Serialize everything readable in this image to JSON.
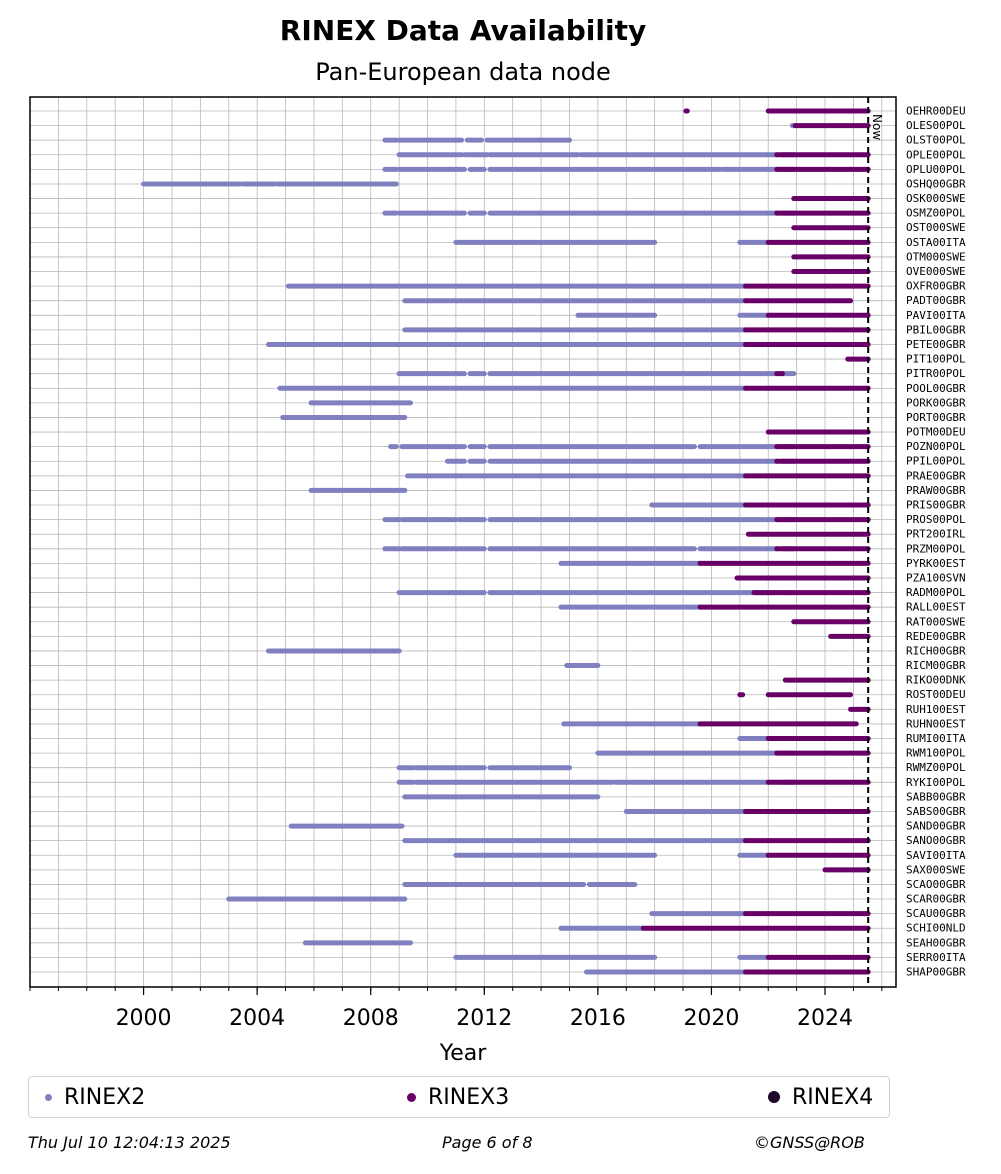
{
  "chart_data": {
    "type": "timeline",
    "title": "RINEX Data Availability",
    "subtitle": "Pan-European data node",
    "xlabel": "Year",
    "xlim": [
      1996.0,
      2026.5
    ],
    "xticks": [
      2000,
      2004,
      2008,
      2012,
      2016,
      2020,
      2024
    ],
    "now": 2025.52,
    "now_label": "Now",
    "colors": {
      "RINEX2": "#8080c0",
      "RINEX3": "#680068",
      "RINEX4": "#20082a"
    },
    "legend": [
      {
        "name": "RINEX2",
        "color": "#8080c0"
      },
      {
        "name": "RINEX3",
        "color": "#680068"
      },
      {
        "name": "RINEX4",
        "color": "#20082a"
      }
    ],
    "stations": [
      {
        "name": "OEHR00DEU",
        "r2": [],
        "r3": [
          [
            2019.1,
            2019.15
          ],
          [
            2022.0,
            2025.52
          ]
        ]
      },
      {
        "name": "OLES00POL",
        "r2": [
          [
            2022.85,
            2022.95
          ]
        ],
        "r3": [
          [
            2022.95,
            2025.52
          ]
        ]
      },
      {
        "name": "OLST00POL",
        "r2": [
          [
            2008.5,
            2008.9
          ],
          [
            2009.0,
            2011.2
          ],
          [
            2011.4,
            2011.9
          ],
          [
            2012.1,
            2015.0
          ]
        ],
        "r3": []
      },
      {
        "name": "OPLE00POL",
        "r2": [
          [
            2009.0,
            2011.2
          ],
          [
            2011.3,
            2012.1
          ],
          [
            2012.2,
            2015.3
          ],
          [
            2015.4,
            2022.3
          ],
          [
            2022.5,
            2022.9
          ]
        ],
        "r3": [
          [
            2022.3,
            2025.52
          ]
        ]
      },
      {
        "name": "OPLU00POL",
        "r2": [
          [
            2008.5,
            2008.9
          ],
          [
            2009.0,
            2011.3
          ],
          [
            2011.5,
            2012.0
          ],
          [
            2012.2,
            2020.3
          ],
          [
            2020.4,
            2022.3
          ],
          [
            2022.4,
            2022.9
          ]
        ],
        "r3": [
          [
            2022.3,
            2025.52
          ]
        ]
      },
      {
        "name": "OSHQ00GBR",
        "r2": [
          [
            2000.0,
            2003.4
          ],
          [
            2003.5,
            2004.6
          ],
          [
            2004.7,
            2008.9
          ]
        ],
        "r3": []
      },
      {
        "name": "OSK000SWE",
        "r2": [],
        "r3": [
          [
            2022.9,
            2025.52
          ]
        ]
      },
      {
        "name": "OSMZ00POL",
        "r2": [
          [
            2008.5,
            2008.9
          ],
          [
            2009.0,
            2011.3
          ],
          [
            2011.5,
            2012.0
          ],
          [
            2012.2,
            2022.3
          ],
          [
            2022.5,
            2022.9
          ]
        ],
        "r3": [
          [
            2022.3,
            2025.52
          ]
        ]
      },
      {
        "name": "OST000SWE",
        "r2": [],
        "r3": [
          [
            2022.9,
            2025.52
          ]
        ]
      },
      {
        "name": "OSTA00ITA",
        "r2": [
          [
            2011.0,
            2018.0
          ],
          [
            2021.0,
            2022.0
          ]
        ],
        "r3": [
          [
            2022.0,
            2025.52
          ]
        ]
      },
      {
        "name": "OTM000SWE",
        "r2": [],
        "r3": [
          [
            2022.9,
            2025.52
          ]
        ]
      },
      {
        "name": "OVE000SWE",
        "r2": [],
        "r3": [
          [
            2022.9,
            2025.52
          ]
        ]
      },
      {
        "name": "OXFR00GBR",
        "r2": [
          [
            2005.1,
            2021.2
          ]
        ],
        "r3": [
          [
            2021.2,
            2025.52
          ]
        ]
      },
      {
        "name": "PADT00GBR",
        "r2": [
          [
            2009.2,
            2021.2
          ]
        ],
        "r3": [
          [
            2021.2,
            2024.9
          ]
        ]
      },
      {
        "name": "PAVI00ITA",
        "r2": [
          [
            2015.3,
            2018.0
          ],
          [
            2021.0,
            2022.0
          ]
        ],
        "r3": [
          [
            2022.0,
            2025.52
          ]
        ]
      },
      {
        "name": "PBIL00GBR",
        "r2": [
          [
            2009.2,
            2021.2
          ]
        ],
        "r3": [
          [
            2021.2,
            2025.52
          ]
        ]
      },
      {
        "name": "PETE00GBR",
        "r2": [
          [
            2004.4,
            2021.2
          ]
        ],
        "r3": [
          [
            2021.2,
            2025.52
          ]
        ]
      },
      {
        "name": "PIT100POL",
        "r2": [],
        "r3": [
          [
            2024.8,
            2025.52
          ]
        ]
      },
      {
        "name": "PITR00POL",
        "r2": [
          [
            2009.0,
            2011.3
          ],
          [
            2011.5,
            2012.0
          ],
          [
            2012.2,
            2022.3
          ],
          [
            2022.5,
            2022.9
          ]
        ],
        "r3": [
          [
            2022.3,
            2022.5
          ]
        ]
      },
      {
        "name": "POOL00GBR",
        "r2": [
          [
            2004.8,
            2021.2
          ]
        ],
        "r3": [
          [
            2021.2,
            2025.52
          ]
        ]
      },
      {
        "name": "PORK00GBR",
        "r2": [
          [
            2005.9,
            2009.4
          ]
        ],
        "r3": []
      },
      {
        "name": "PORT00GBR",
        "r2": [
          [
            2004.9,
            2009.2
          ]
        ],
        "r3": []
      },
      {
        "name": "POTM00DEU",
        "r2": [],
        "r3": [
          [
            2022.0,
            2025.52
          ]
        ]
      },
      {
        "name": "POZN00POL",
        "r2": [
          [
            2008.7,
            2008.9
          ],
          [
            2009.1,
            2011.3
          ],
          [
            2011.5,
            2012.0
          ],
          [
            2012.2,
            2019.4
          ],
          [
            2019.6,
            2022.3
          ],
          [
            2022.5,
            2022.9
          ]
        ],
        "r3": [
          [
            2022.3,
            2025.52
          ]
        ]
      },
      {
        "name": "PPIL00POL",
        "r2": [
          [
            2010.7,
            2011.3
          ],
          [
            2011.5,
            2012.0
          ],
          [
            2012.2,
            2022.3
          ],
          [
            2022.5,
            2022.9
          ]
        ],
        "r3": [
          [
            2022.3,
            2025.52
          ]
        ]
      },
      {
        "name": "PRAE00GBR",
        "r2": [
          [
            2009.3,
            2021.2
          ]
        ],
        "r3": [
          [
            2021.2,
            2025.52
          ]
        ]
      },
      {
        "name": "PRAW00GBR",
        "r2": [
          [
            2005.9,
            2009.2
          ]
        ],
        "r3": []
      },
      {
        "name": "PRIS00GBR",
        "r2": [
          [
            2017.9,
            2021.2
          ]
        ],
        "r3": [
          [
            2021.2,
            2025.52
          ]
        ]
      },
      {
        "name": "PROS00POL",
        "r2": [
          [
            2008.5,
            2009.0
          ],
          [
            2009.1,
            2011.0
          ],
          [
            2011.1,
            2012.0
          ],
          [
            2012.2,
            2022.3
          ],
          [
            2022.5,
            2022.9
          ]
        ],
        "r3": [
          [
            2022.3,
            2025.52
          ]
        ]
      },
      {
        "name": "PRT200IRL",
        "r2": [],
        "r3": [
          [
            2021.3,
            2025.52
          ]
        ]
      },
      {
        "name": "PRZM00POL",
        "r2": [
          [
            2008.5,
            2009.0
          ],
          [
            2009.1,
            2012.0
          ],
          [
            2012.2,
            2019.4
          ],
          [
            2019.6,
            2022.3
          ],
          [
            2022.5,
            2022.9
          ]
        ],
        "r3": [
          [
            2022.3,
            2025.52
          ]
        ]
      },
      {
        "name": "PYRK00EST",
        "r2": [
          [
            2014.7,
            2019.6
          ]
        ],
        "r3": [
          [
            2019.6,
            2025.52
          ]
        ]
      },
      {
        "name": "PZA100SVN",
        "r2": [],
        "r3": [
          [
            2020.9,
            2025.52
          ]
        ]
      },
      {
        "name": "RADM00POL",
        "r2": [
          [
            2009.0,
            2012.0
          ],
          [
            2012.2,
            2021.5
          ],
          [
            2021.6,
            2022.3
          ],
          [
            2022.5,
            2022.9
          ]
        ],
        "r3": [
          [
            2021.5,
            2025.52
          ]
        ]
      },
      {
        "name": "RALL00EST",
        "r2": [
          [
            2014.7,
            2019.6
          ]
        ],
        "r3": [
          [
            2019.6,
            2025.52
          ]
        ]
      },
      {
        "name": "RAT000SWE",
        "r2": [],
        "r3": [
          [
            2022.9,
            2025.52
          ]
        ]
      },
      {
        "name": "REDE00GBR",
        "r2": [],
        "r3": [
          [
            2024.2,
            2025.52
          ]
        ]
      },
      {
        "name": "RICH00GBR",
        "r2": [
          [
            2004.4,
            2009.0
          ]
        ],
        "r3": []
      },
      {
        "name": "RICM00GBR",
        "r2": [
          [
            2014.9,
            2016.0
          ]
        ],
        "r3": []
      },
      {
        "name": "RIKO00DNK",
        "r2": [],
        "r3": [
          [
            2022.6,
            2025.52
          ]
        ]
      },
      {
        "name": "ROST00DEU",
        "r2": [],
        "r3": [
          [
            2021.0,
            2021.1
          ],
          [
            2022.0,
            2024.9
          ]
        ]
      },
      {
        "name": "RUH100EST",
        "r2": [],
        "r3": [
          [
            2024.9,
            2025.52
          ]
        ]
      },
      {
        "name": "RUHN00EST",
        "r2": [
          [
            2014.8,
            2019.6
          ]
        ],
        "r3": [
          [
            2019.6,
            2025.1
          ]
        ]
      },
      {
        "name": "RUMI00ITA",
        "r2": [
          [
            2021.0,
            2022.0
          ]
        ],
        "r3": [
          [
            2022.0,
            2025.52
          ]
        ]
      },
      {
        "name": "RWM100POL",
        "r2": [
          [
            2016.0,
            2022.3
          ],
          [
            2022.5,
            2022.9
          ]
        ],
        "r3": [
          [
            2022.3,
            2025.52
          ]
        ]
      },
      {
        "name": "RWMZ00POL",
        "r2": [
          [
            2009.0,
            2009.5
          ],
          [
            2009.6,
            2012.0
          ],
          [
            2012.2,
            2015.0
          ]
        ],
        "r3": []
      },
      {
        "name": "RYKI00POL",
        "r2": [
          [
            2009.0,
            2009.5
          ],
          [
            2009.6,
            2016.5
          ],
          [
            2016.6,
            2022.0
          ],
          [
            2022.5,
            2022.9
          ]
        ],
        "r3": [
          [
            2022.0,
            2025.52
          ]
        ]
      },
      {
        "name": "SABB00GBR",
        "r2": [
          [
            2009.2,
            2016.0
          ]
        ],
        "r3": []
      },
      {
        "name": "SABS00GBR",
        "r2": [
          [
            2017.0,
            2021.2
          ]
        ],
        "r3": [
          [
            2021.2,
            2025.52
          ]
        ]
      },
      {
        "name": "SAND00GBR",
        "r2": [
          [
            2005.2,
            2009.1
          ]
        ],
        "r3": []
      },
      {
        "name": "SANO00GBR",
        "r2": [
          [
            2009.2,
            2021.2
          ]
        ],
        "r3": [
          [
            2021.2,
            2025.52
          ]
        ]
      },
      {
        "name": "SAVI00ITA",
        "r2": [
          [
            2011.0,
            2018.0
          ],
          [
            2021.0,
            2022.0
          ]
        ],
        "r3": [
          [
            2022.0,
            2025.52
          ]
        ]
      },
      {
        "name": "SAX000SWE",
        "r2": [],
        "r3": [
          [
            2024.0,
            2025.52
          ]
        ]
      },
      {
        "name": "SCAO00GBR",
        "r2": [
          [
            2009.2,
            2015.5
          ],
          [
            2015.7,
            2017.3
          ]
        ],
        "r3": []
      },
      {
        "name": "SCAR00GBR",
        "r2": [
          [
            2003.0,
            2009.2
          ]
        ],
        "r3": []
      },
      {
        "name": "SCAU00GBR",
        "r2": [
          [
            2017.9,
            2021.2
          ]
        ],
        "r3": [
          [
            2021.2,
            2025.52
          ]
        ]
      },
      {
        "name": "SCHI00NLD",
        "r2": [
          [
            2014.7,
            2017.6
          ]
        ],
        "r3": [
          [
            2017.6,
            2025.52
          ]
        ]
      },
      {
        "name": "SEAH00GBR",
        "r2": [
          [
            2005.7,
            2009.4
          ]
        ],
        "r3": []
      },
      {
        "name": "SERR00ITA",
        "r2": [
          [
            2011.0,
            2018.0
          ],
          [
            2021.0,
            2022.0
          ]
        ],
        "r3": [
          [
            2022.0,
            2025.52
          ]
        ]
      },
      {
        "name": "SHAP00GBR",
        "r2": [
          [
            2015.6,
            2021.2
          ]
        ],
        "r3": [
          [
            2021.2,
            2025.52
          ]
        ]
      }
    ]
  },
  "footer": {
    "date": "Thu Jul 10 12:04:13 2025",
    "page": "Page 6 of 8",
    "copyright": "©GNSS@ROB"
  }
}
